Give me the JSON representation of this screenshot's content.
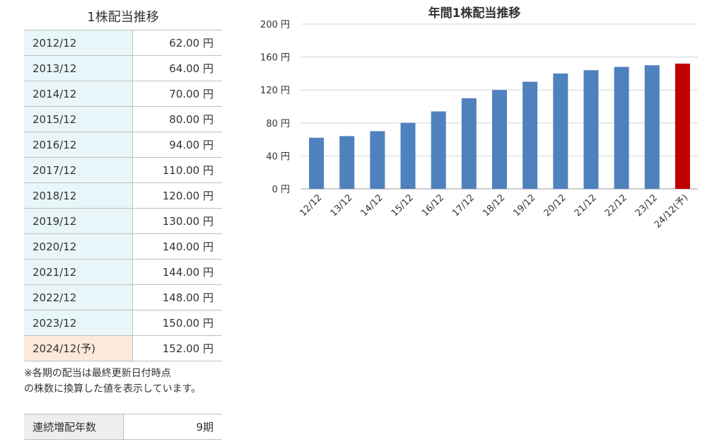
{
  "table": {
    "title": "1株配当推移",
    "rows": [
      {
        "period": "2012/12",
        "amount": "62.00 円"
      },
      {
        "period": "2013/12",
        "amount": "64.00 円"
      },
      {
        "period": "2014/12",
        "amount": "70.00 円"
      },
      {
        "period": "2015/12",
        "amount": "80.00 円"
      },
      {
        "period": "2016/12",
        "amount": "94.00 円"
      },
      {
        "period": "2017/12",
        "amount": "110.00 円"
      },
      {
        "period": "2018/12",
        "amount": "120.00 円"
      },
      {
        "period": "2019/12",
        "amount": "130.00 円"
      },
      {
        "period": "2020/12",
        "amount": "140.00 円"
      },
      {
        "period": "2021/12",
        "amount": "144.00 円"
      },
      {
        "period": "2022/12",
        "amount": "148.00 円"
      },
      {
        "period": "2023/12",
        "amount": "150.00 円"
      },
      {
        "period": "2024/12(予)",
        "amount": "152.00 円"
      }
    ],
    "forecast_row_color": "#fde9da",
    "actual_row_color": "#e8f5f9"
  },
  "note": {
    "line1": "※各期の配当は最終更新日付時点",
    "line2": "の株数に換算した値を表示しています。"
  },
  "streak": {
    "label": "連続増配年数",
    "value": "9期"
  },
  "chart_data": {
    "type": "bar",
    "title": "年間1株配当推移",
    "categories": [
      "12/12",
      "13/12",
      "14/12",
      "15/12",
      "16/12",
      "17/12",
      "18/12",
      "19/12",
      "20/12",
      "21/12",
      "22/12",
      "23/12",
      "24/12(予)"
    ],
    "values": [
      62,
      64,
      70,
      80,
      94,
      110,
      120,
      130,
      140,
      144,
      148,
      150,
      152
    ],
    "ylim": [
      0,
      200
    ],
    "yticks": [
      0,
      40,
      80,
      120,
      160,
      200
    ],
    "ytick_labels": [
      "0 円",
      "40 円",
      "80 円",
      "120 円",
      "160 円",
      "200 円"
    ],
    "grid": true,
    "bar_color": "#4f81bd",
    "forecast_color": "#c00000",
    "forecast_index": 12
  }
}
